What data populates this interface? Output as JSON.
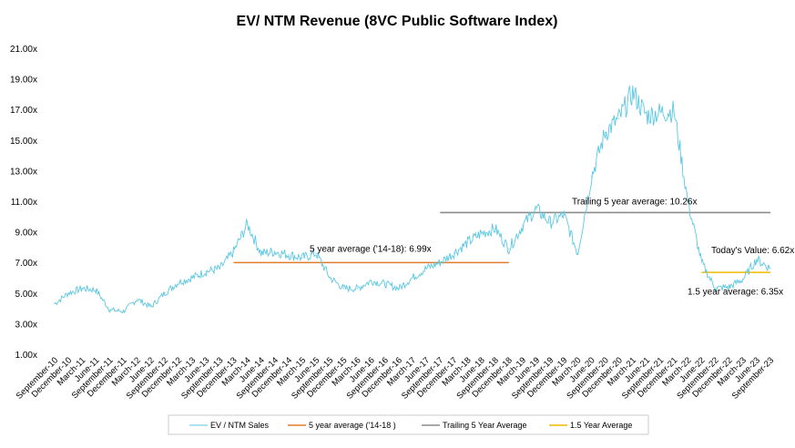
{
  "chart_data": {
    "type": "line",
    "title": "EV/ NTM Revenue (8VC Public Software Index)",
    "y_ticks": [
      "1.00x",
      "3.00x",
      "5.00x",
      "7.00x",
      "9.00x",
      "11.00x",
      "13.00x",
      "15.00x",
      "17.00x",
      "19.00x",
      "21.00x"
    ],
    "ylim": [
      1,
      21
    ],
    "x_ticks": [
      "September-10",
      "December-10",
      "March-11",
      "June-11",
      "September-11",
      "December-11",
      "March-12",
      "June-12",
      "September-12",
      "December-12",
      "March-13",
      "June-13",
      "September-13",
      "December-13",
      "March-14",
      "June-14",
      "September-14",
      "December-14",
      "March-15",
      "June-15",
      "September-15",
      "December-15",
      "March-16",
      "June-16",
      "September-16",
      "December-16",
      "March-17",
      "June-17",
      "September-17",
      "December-17",
      "March-18",
      "June-18",
      "September-18",
      "December-18",
      "March-19",
      "June-19",
      "September-19",
      "December-19",
      "March-20",
      "June-20",
      "September-20",
      "December-20",
      "March-21",
      "June-21",
      "September-21",
      "December-21",
      "March-22",
      "June-22",
      "September-22",
      "December-22",
      "March-23",
      "June-23",
      "September-23"
    ],
    "series": [
      {
        "name": "EV / NTM Sales",
        "color": "#5bc8e2",
        "values": [
          4.3,
          5.0,
          5.3,
          5.2,
          3.9,
          3.8,
          4.6,
          4.1,
          5.0,
          5.7,
          6.0,
          6.4,
          6.6,
          7.7,
          9.5,
          7.6,
          7.7,
          7.5,
          7.3,
          7.6,
          6.0,
          5.3,
          5.3,
          5.8,
          5.6,
          5.3,
          6.0,
          6.6,
          7.0,
          7.6,
          8.3,
          8.9,
          9.2,
          7.9,
          9.4,
          10.5,
          9.6,
          10.1,
          7.6,
          12.6,
          15.5,
          16.4,
          18.1,
          16.6,
          16.8,
          16.9,
          11.0,
          7.0,
          5.3,
          5.4,
          5.9,
          7.2,
          6.6
        ]
      },
      {
        "name": "5 year average ('14-18 )",
        "color": "#e07b2a",
        "value": 6.99,
        "x_range": [
          "December-13",
          "December-18"
        ]
      },
      {
        "name": "Trailing 5 Year Average",
        "color": "#8c8c8c",
        "value": 10.26,
        "x_range": [
          "September-17",
          "September-23"
        ]
      },
      {
        "name": "1.5 Year Average",
        "color": "#f0b800",
        "value": 6.35,
        "x_range": [
          "June-22",
          "September-23"
        ]
      }
    ],
    "annotations": [
      {
        "text": "5 year average ('14-18): 6.99x"
      },
      {
        "text": "Trailing 5 year average:  10.26x"
      },
      {
        "text": "Today's Value: 6.62x"
      },
      {
        "text": "1.5 year average:  6.35x"
      }
    ],
    "grid": false,
    "legend_position": "bottom"
  }
}
